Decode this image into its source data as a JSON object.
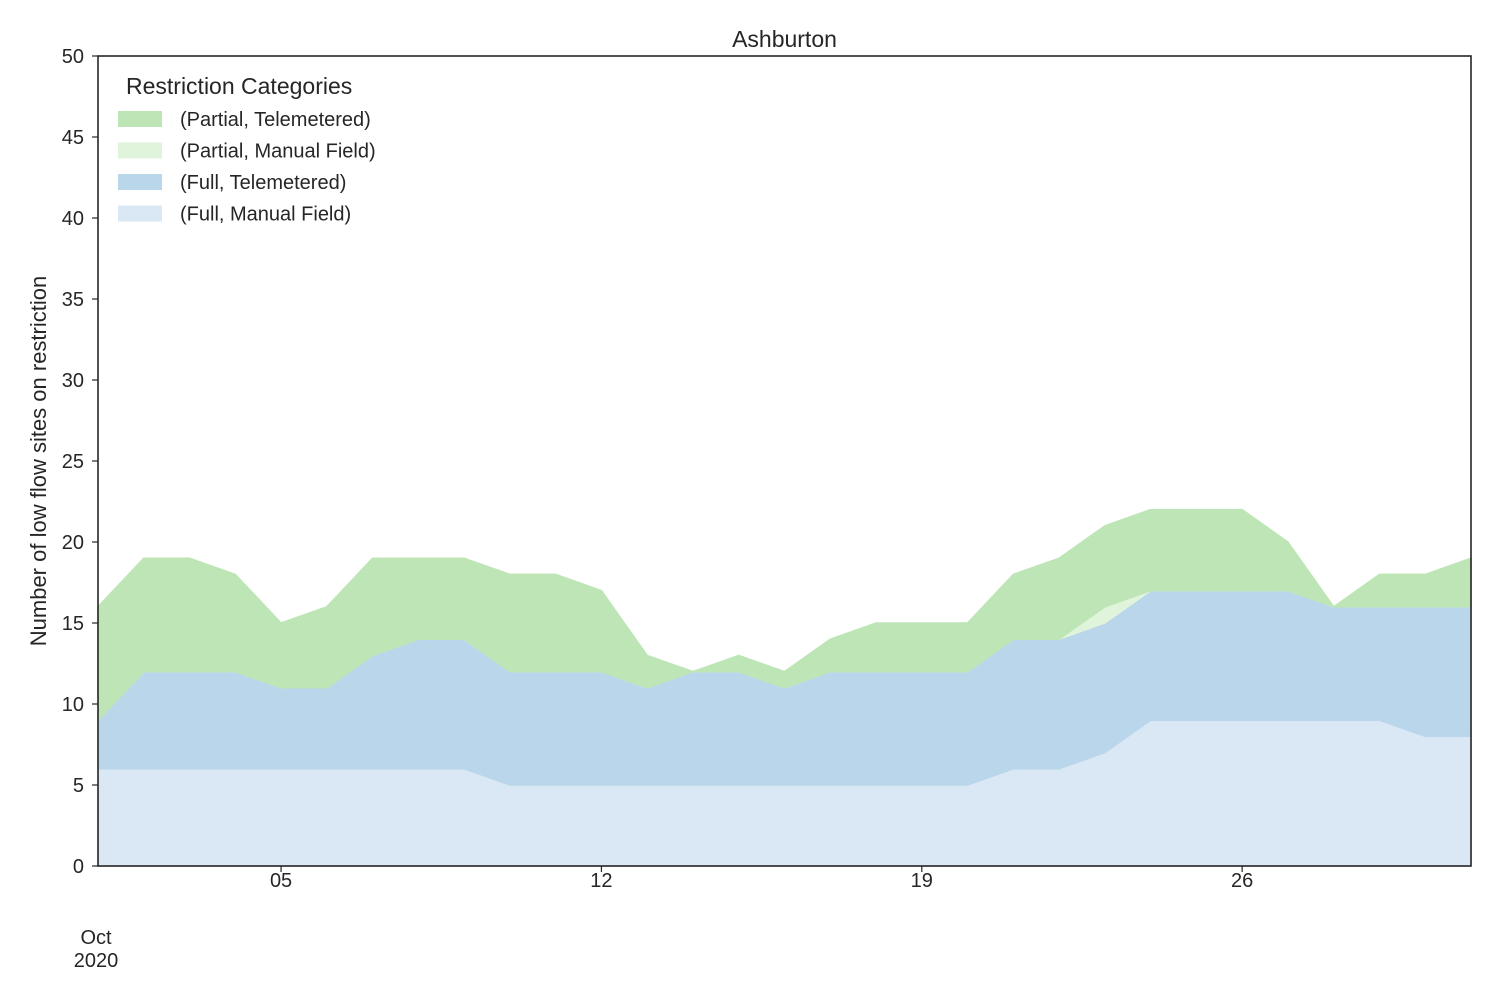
{
  "chart_data": {
    "type": "area",
    "stacked": true,
    "title": "Ashburton",
    "xlabel": "",
    "ylabel": "Number of low flow sites on restriction",
    "ylim": [
      0,
      50
    ],
    "yticks": [
      "0",
      "5",
      "10",
      "15",
      "20",
      "25",
      "30",
      "35",
      "40",
      "45",
      "50"
    ],
    "xlim": [
      "2020-10-01",
      "2020-10-31"
    ],
    "xticks": [
      {
        "date": "2020-10-05",
        "label": "05"
      },
      {
        "date": "2020-10-12",
        "label": "12"
      },
      {
        "date": "2020-10-19",
        "label": "19"
      },
      {
        "date": "2020-10-26",
        "label": "26"
      }
    ],
    "x_month_label": "Oct",
    "x_year_label": "2020",
    "grid": false,
    "legend": {
      "title": "Restriction Categories",
      "position": "top-left"
    },
    "x": [
      "2020-10-01",
      "2020-10-02",
      "2020-10-03",
      "2020-10-04",
      "2020-10-05",
      "2020-10-06",
      "2020-10-07",
      "2020-10-08",
      "2020-10-09",
      "2020-10-10",
      "2020-10-11",
      "2020-10-12",
      "2020-10-13",
      "2020-10-14",
      "2020-10-15",
      "2020-10-16",
      "2020-10-17",
      "2020-10-18",
      "2020-10-19",
      "2020-10-20",
      "2020-10-21",
      "2020-10-22",
      "2020-10-23",
      "2020-10-24",
      "2020-10-25",
      "2020-10-26",
      "2020-10-27",
      "2020-10-28",
      "2020-10-29",
      "2020-10-30",
      "2020-10-31"
    ],
    "series": [
      {
        "name": "(Full, Manual Field)",
        "color": "#dae8f5",
        "values": [
          6,
          6,
          6,
          6,
          6,
          6,
          6,
          6,
          6,
          5,
          5,
          5,
          5,
          5,
          5,
          5,
          5,
          5,
          5,
          5,
          6,
          6,
          7,
          9,
          9,
          9,
          9,
          9,
          9,
          8,
          8
        ]
      },
      {
        "name": "(Full, Telemetered)",
        "color": "#bad6ea",
        "values": [
          3,
          6,
          6,
          6,
          5,
          5,
          7,
          8,
          8,
          7,
          7,
          7,
          6,
          7,
          7,
          6,
          7,
          7,
          7,
          7,
          8,
          8,
          8,
          8,
          8,
          8,
          8,
          7,
          7,
          8,
          8
        ]
      },
      {
        "name": "(Partial, Manual Field)",
        "color": "#e0f3db",
        "values": [
          0,
          0,
          0,
          0,
          0,
          0,
          0,
          0,
          0,
          0,
          0,
          0,
          0,
          0,
          0,
          0,
          0,
          0,
          0,
          0,
          0,
          0,
          1,
          0,
          0,
          0,
          0,
          0,
          0,
          0,
          0
        ]
      },
      {
        "name": "(Partial, Telemetered)",
        "color": "#bde5b5",
        "values": [
          7,
          7,
          7,
          6,
          4,
          5,
          6,
          5,
          5,
          6,
          6,
          5,
          2,
          0,
          1,
          1,
          2,
          3,
          3,
          3,
          4,
          5,
          5,
          5,
          5,
          5,
          3,
          0,
          2,
          2,
          3
        ]
      }
    ]
  }
}
